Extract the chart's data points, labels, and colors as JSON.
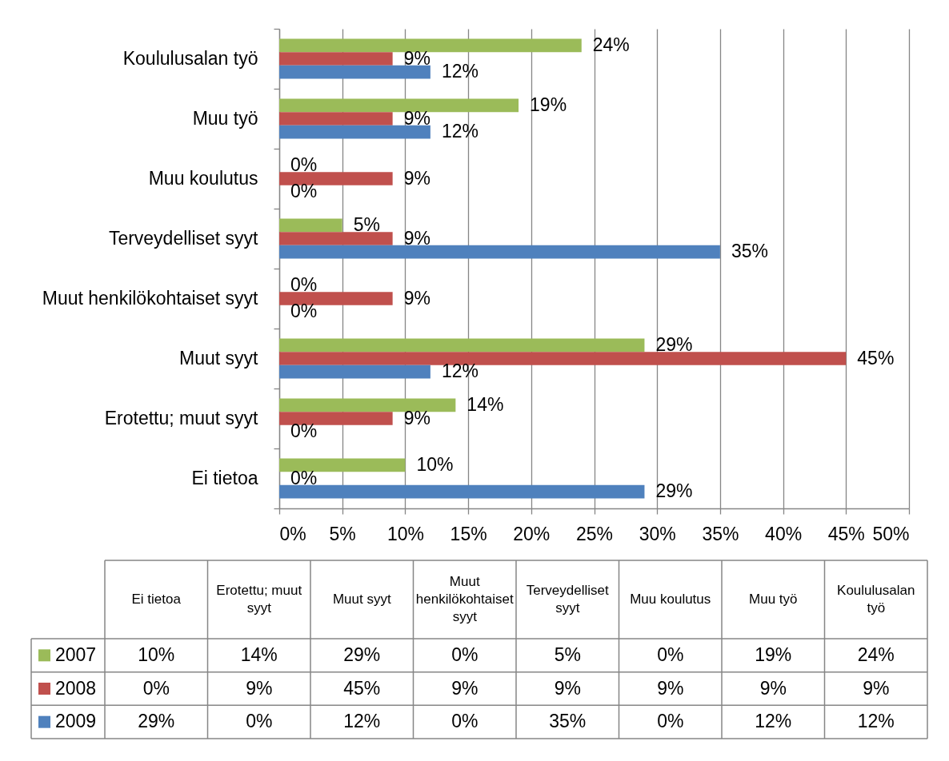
{
  "chart_data": {
    "type": "bar",
    "orientation": "horizontal",
    "categories": [
      "Koululusalan työ",
      "Muu työ",
      "Muu koulutus",
      "Terveydelliset syyt",
      "Muut henkilökohtaiset syyt",
      "Muut syyt",
      "Erotettu; muut syyt",
      "Ei tietoa"
    ],
    "series": [
      {
        "name": "2007",
        "color": "#9bbb59",
        "values": [
          24,
          19,
          0,
          5,
          0,
          29,
          14,
          10
        ],
        "value_labels": [
          "24%",
          "19%",
          "0%",
          "5%",
          "0%",
          "29%",
          "14%",
          "10%"
        ]
      },
      {
        "name": "2008",
        "color": "#c0504d",
        "values": [
          9,
          9,
          9,
          9,
          9,
          45,
          9,
          0
        ],
        "value_labels": [
          "9%",
          "9%",
          "9%",
          "9%",
          "9%",
          "45%",
          "9%",
          "0%"
        ]
      },
      {
        "name": "2009",
        "color": "#4f81bd",
        "values": [
          12,
          12,
          0,
          35,
          0,
          12,
          0,
          29
        ],
        "value_labels": [
          "12%",
          "12%",
          "0%",
          "35%",
          "0%",
          "12%",
          "0%",
          "29%"
        ]
      }
    ],
    "xlim": [
      0,
      50
    ],
    "xticks": [
      {
        "value": 0,
        "label": "0%"
      },
      {
        "value": 5,
        "label": "5%"
      },
      {
        "value": 10,
        "label": "10%"
      },
      {
        "value": 15,
        "label": "15%"
      },
      {
        "value": 20,
        "label": "20%"
      },
      {
        "value": 25,
        "label": "25%"
      },
      {
        "value": 30,
        "label": "30%"
      },
      {
        "value": 35,
        "label": "35%"
      },
      {
        "value": 40,
        "label": "40%"
      },
      {
        "value": 45,
        "label": "45%"
      },
      {
        "value": 50,
        "label": "50%"
      }
    ],
    "grid": "x",
    "legend": "bottom"
  }
}
